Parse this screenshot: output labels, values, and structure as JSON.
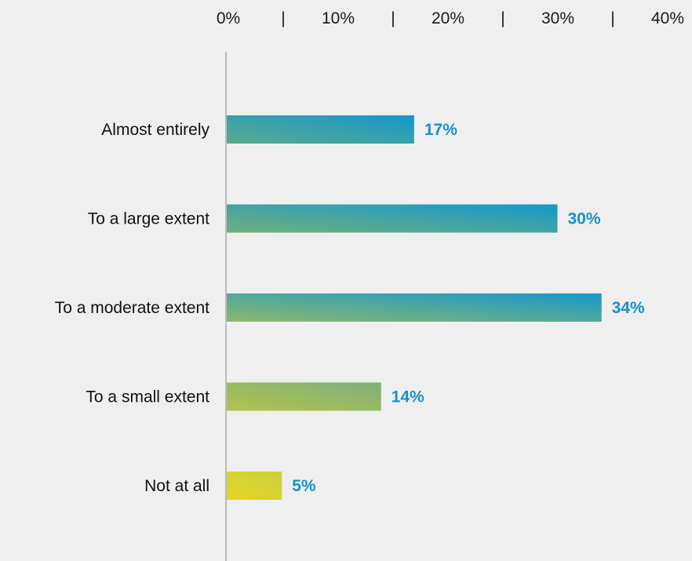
{
  "chart_data": {
    "type": "bar",
    "orientation": "horizontal",
    "categories": [
      "Almost entirely",
      "To a large extent",
      "To a moderate extent",
      "To a small extent",
      "Not at all"
    ],
    "values": [
      17,
      30,
      34,
      14,
      5
    ],
    "value_labels": [
      "17%",
      "30%",
      "34%",
      "14%",
      "5%"
    ],
    "x_ticks": [
      "0%",
      "10%",
      "20%",
      "30%",
      "40%"
    ],
    "tick_separator": "|",
    "xlim": [
      0,
      40
    ],
    "tick_position": "top",
    "grid": false,
    "legend": "none",
    "colors": {
      "gradient_start": [
        "#5aaa8c",
        "#6fb07c",
        "#8cb86c",
        "#b4c24e",
        "#e8d424"
      ],
      "gradient_end": [
        "#1598cc",
        "#1598cc",
        "#1598cc",
        "#7db07a",
        "#c8d03c"
      ],
      "value_label": "#1790ce",
      "axis_line": "#bdbdbd",
      "background": "#efefef"
    }
  }
}
